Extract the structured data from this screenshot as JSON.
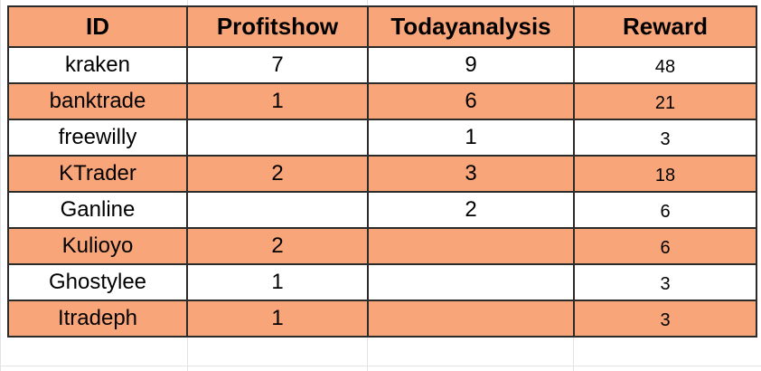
{
  "colors": {
    "accent_row": "#f9a57a",
    "plain_row": "#ffffff",
    "border": "#2b2b2b",
    "gridline": "#e3e3e3"
  },
  "table": {
    "headers": [
      "ID",
      "Profitshow",
      "Todayanalysis",
      "Reward"
    ],
    "rows": [
      {
        "id": "kraken",
        "profitshow": "7",
        "todayanalysis": "9",
        "reward": "48",
        "highlight": false
      },
      {
        "id": "banktrade",
        "profitshow": "1",
        "todayanalysis": "6",
        "reward": "21",
        "highlight": true
      },
      {
        "id": "freewilly",
        "profitshow": "",
        "todayanalysis": "1",
        "reward": "3",
        "highlight": false
      },
      {
        "id": "KTrader",
        "profitshow": "2",
        "todayanalysis": "3",
        "reward": "18",
        "highlight": true
      },
      {
        "id": "Ganline",
        "profitshow": "",
        "todayanalysis": "2",
        "reward": "6",
        "highlight": false
      },
      {
        "id": "Kulioyo",
        "profitshow": "2",
        "todayanalysis": "",
        "reward": "6",
        "highlight": true
      },
      {
        "id": "Ghostylee",
        "profitshow": "1",
        "todayanalysis": "",
        "reward": "3",
        "highlight": false
      },
      {
        "id": "Itradeph",
        "profitshow": "1",
        "todayanalysis": "",
        "reward": "3",
        "highlight": true
      }
    ]
  }
}
